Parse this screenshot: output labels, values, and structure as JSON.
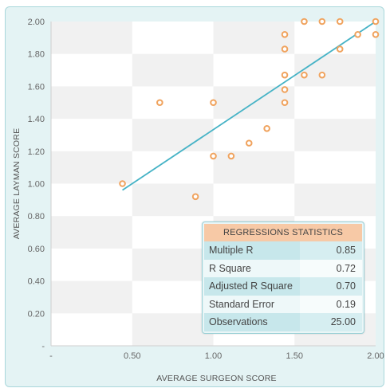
{
  "chart_data": {
    "type": "scatter",
    "xlabel": "AVERAGE SURGEON SCORE",
    "ylabel": "AVERAGE LAYMAN SCORE",
    "x_ticks": [
      "-",
      "0.50",
      "1.00",
      "1.50",
      "2.00"
    ],
    "y_ticks": [
      "-",
      "0.20",
      "0.40",
      "0.60",
      "0.80",
      "1.00",
      "1.20",
      "1.40",
      "1.60",
      "1.80",
      "2.00"
    ],
    "xlim": [
      0,
      2
    ],
    "ylim": [
      0,
      2
    ],
    "points": [
      {
        "x": 0.44,
        "y": 1.0
      },
      {
        "x": 0.67,
        "y": 1.5
      },
      {
        "x": 0.89,
        "y": 0.92
      },
      {
        "x": 1.0,
        "y": 1.5
      },
      {
        "x": 1.0,
        "y": 1.17
      },
      {
        "x": 1.11,
        "y": 1.17
      },
      {
        "x": 1.22,
        "y": 1.25
      },
      {
        "x": 1.33,
        "y": 1.34
      },
      {
        "x": 1.44,
        "y": 1.92
      },
      {
        "x": 1.44,
        "y": 1.83
      },
      {
        "x": 1.44,
        "y": 1.67
      },
      {
        "x": 1.44,
        "y": 1.58
      },
      {
        "x": 1.44,
        "y": 1.5
      },
      {
        "x": 1.56,
        "y": 2.0
      },
      {
        "x": 1.56,
        "y": 1.67
      },
      {
        "x": 1.67,
        "y": 2.0
      },
      {
        "x": 1.67,
        "y": 1.67
      },
      {
        "x": 1.78,
        "y": 2.0
      },
      {
        "x": 1.78,
        "y": 1.83
      },
      {
        "x": 1.89,
        "y": 1.92
      },
      {
        "x": 2.0,
        "y": 2.0
      },
      {
        "x": 2.0,
        "y": 1.92
      }
    ],
    "trendline": {
      "x": [
        0.44,
        2.0
      ],
      "y": [
        0.96,
        2.0
      ]
    },
    "grid": true,
    "colors": {
      "points": "#f0a35e",
      "trendline": "#46b3c6"
    }
  },
  "stats": {
    "title": "REGRESSIONS STATISTICS",
    "rows": [
      {
        "label": "Multiple R",
        "value": "0.85"
      },
      {
        "label": "R Square",
        "value": "0.72"
      },
      {
        "label": "Adjusted R Square",
        "value": "0.70"
      },
      {
        "label": "Standard Error",
        "value": "0.19"
      },
      {
        "label": "Observations",
        "value": "25.00"
      }
    ]
  }
}
